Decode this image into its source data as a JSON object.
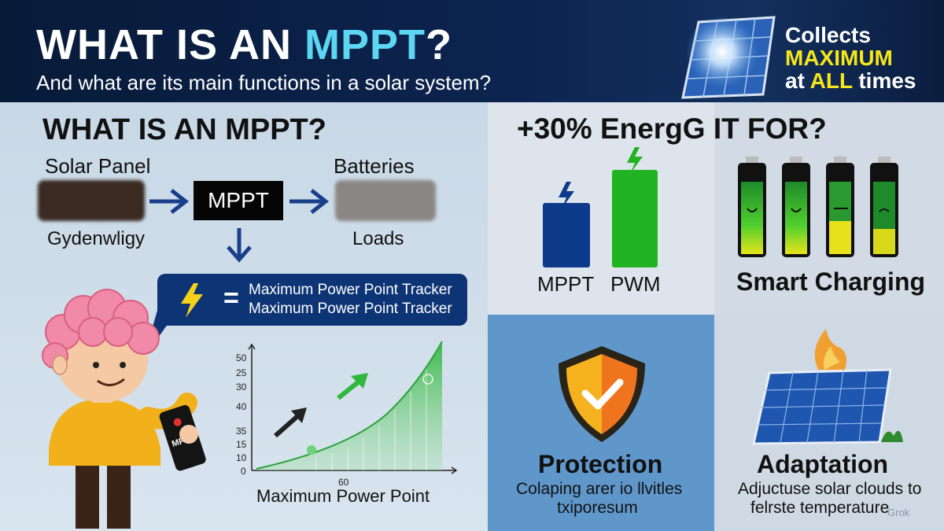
{
  "header": {
    "title_prefix": "WHAT IS AN ",
    "title_accent": "MPPT",
    "title_suffix": "?",
    "subtitle": "And what are its main functions in a solar system?",
    "badge_line1": "Collects",
    "badge_line2": "MAXIMUM",
    "badge_line3_prefix": "at ",
    "badge_line3_highlight": "ALL",
    "badge_line3_suffix": " times"
  },
  "left": {
    "section_title": "WHAT IS AN MPPT?",
    "solar_panel_label": "Solar Panel",
    "batteries_label": "Batteries",
    "mppt_label": "MPPT",
    "source_caption": "Gydenwligy",
    "loads_label": "Loads",
    "tracker_line1": "Maximum Power Point Tracker",
    "tracker_line2": "Maximum Power Point Tracker",
    "tracker_eq": "=",
    "device_label": "MPPT",
    "chart_caption": "Maximum Power Point",
    "chart_x_tick": "60",
    "chart_y_ticks": [
      "50",
      "25",
      "30",
      "40",
      "35",
      "15",
      "10",
      "0"
    ]
  },
  "right": {
    "title": "+30% EnergG IT FOR?",
    "bar_mppt": "MPPT",
    "bar_pwm": "PWM",
    "smart_charging": "Smart Charging",
    "protection_title": "Protection",
    "protection_sub1": "Colaping arer io llvitles",
    "protection_sub2": "txiporesum",
    "adaptation_title": "Adaptation",
    "adaptation_sub1": "Adjuctuse solar clouds to",
    "adaptation_sub2": "felrste temperature"
  },
  "watermark": "Grok",
  "colors": {
    "header_bg": "#0d2450",
    "accent": "#5cd6f2",
    "highlight": "#f5e71a",
    "mppt_bar": "#0d3a8a",
    "pwm_bar": "#22b322",
    "shield_orange": "#f08c1e"
  }
}
